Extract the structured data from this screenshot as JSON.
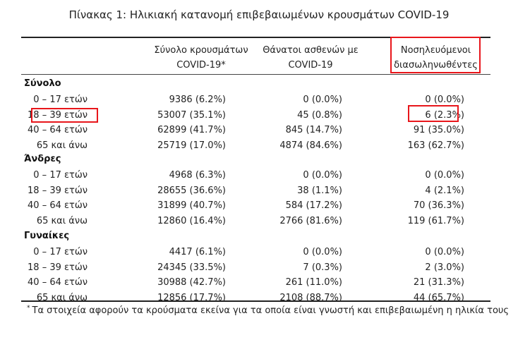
{
  "title": "Πίνακας 1: Ηλικιακή κατανομή επιβεβαιωμένων κρουσμάτων COVID-19",
  "headers": {
    "total": [
      "Σύνολο κρουσμάτων",
      "COVID-19*"
    ],
    "deaths": [
      "Θάνατοι ασθενών με",
      "COVID-19"
    ],
    "hospitalized": [
      "Νοσηλευόμενοι",
      "διασωληνωθέντες"
    ]
  },
  "groups": [
    {
      "name": "Σύνολο",
      "rows": [
        {
          "age": "0 – 17 ετών",
          "total": "9386 (6.2%)",
          "deaths": "0 (0.0%)",
          "hosp": "0 (0.0%)"
        },
        {
          "age": "18 – 39 ετών",
          "total": "53007 (35.1%)",
          "deaths": "45 (0.8%)",
          "hosp": "6 (2.3%)"
        },
        {
          "age": "40 – 64 ετών",
          "total": "62899 (41.7%)",
          "deaths": "845 (14.7%)",
          "hosp": "91 (35.0%)"
        },
        {
          "age": "65 και άνω",
          "total": "25719 (17.0%)",
          "deaths": "4874 (84.6%)",
          "hosp": "163 (62.7%)"
        }
      ]
    },
    {
      "name": "Άνδρες",
      "rows": [
        {
          "age": "0 – 17 ετών",
          "total": "4968 (6.3%)",
          "deaths": "0 (0.0%)",
          "hosp": "0 (0.0%)"
        },
        {
          "age": "18 – 39 ετών",
          "total": "28655 (36.6%)",
          "deaths": "38 (1.1%)",
          "hosp": "4 (2.1%)"
        },
        {
          "age": "40 – 64 ετών",
          "total": "31899 (40.7%)",
          "deaths": "584 (17.2%)",
          "hosp": "70 (36.3%)"
        },
        {
          "age": "65 και άνω",
          "total": "12860 (16.4%)",
          "deaths": "2766 (81.6%)",
          "hosp": "119 (61.7%)"
        }
      ]
    },
    {
      "name": "Γυναίκες",
      "rows": [
        {
          "age": "0 – 17 ετών",
          "total": "4417 (6.1%)",
          "deaths": "0 (0.0%)",
          "hosp": "0 (0.0%)"
        },
        {
          "age": "18 – 39 ετών",
          "total": "24345 (33.5%)",
          "deaths": "7 (0.3%)",
          "hosp": "2 (3.0%)"
        },
        {
          "age": "40 – 64 ετών",
          "total": "30988 (42.7%)",
          "deaths": "261 (11.0%)",
          "hosp": "21 (31.3%)"
        },
        {
          "age": "65 και άνω",
          "total": "12856 (17.7%)",
          "deaths": "2108 (88.7%)",
          "hosp": "44 (65.7%)"
        }
      ]
    }
  ],
  "footnote": {
    "marker": "*",
    "text": "Τα στοιχεία αφορούν τα κρούσματα εκείνα για τα οποία είναι γνωστή και επιβεβαιωμένη η ηλικία τους"
  },
  "highlight_color": "#e8161b"
}
